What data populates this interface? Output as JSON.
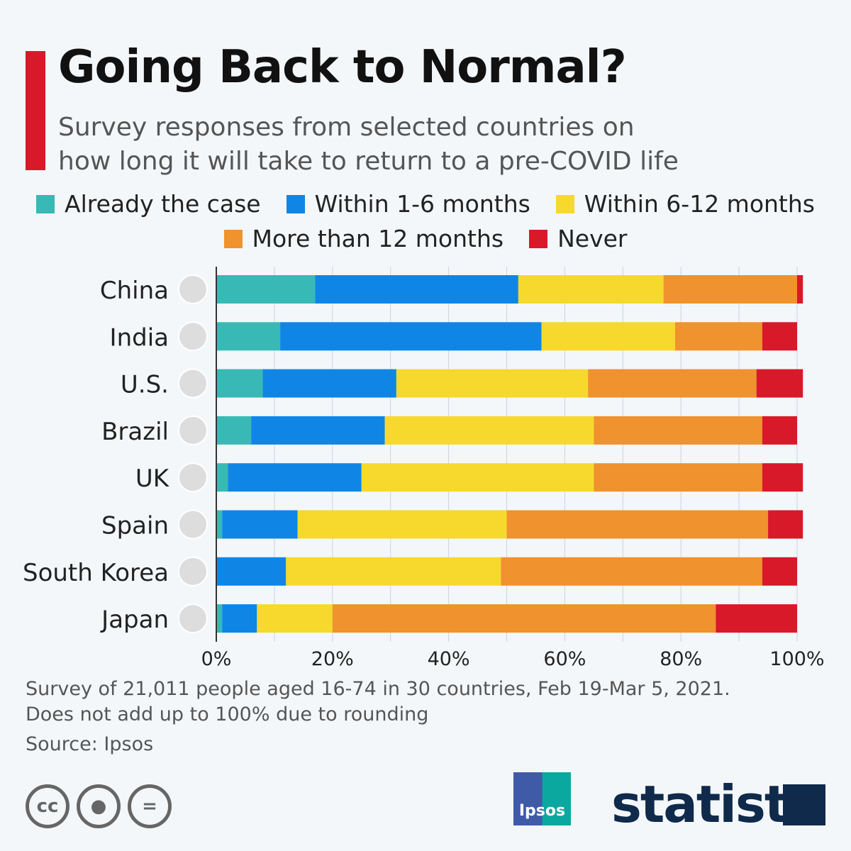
{
  "title": "Going Back to Normal?",
  "subtitle_lines": [
    "Survey responses from selected countries on",
    "how long it will take to return to a pre-COVID life"
  ],
  "footer": {
    "note1": "Survey of 21,011 people aged 16-74 in 30 countries, Feb 19-Mar 5, 2021.",
    "note2": "Does not add up to 100% due to rounding",
    "source": "Source: Ipsos",
    "ipsos_logo": "Ipsos",
    "brand": "statista"
  },
  "chart_data": {
    "type": "bar",
    "orientation": "horizontal",
    "stacked": true,
    "categories": [
      "China",
      "India",
      "U.S.",
      "Brazil",
      "UK",
      "Spain",
      "South Korea",
      "Japan"
    ],
    "xlim": [
      0,
      100
    ],
    "grid": true,
    "legend_placement": "top",
    "xticks": [
      "0%",
      "20%",
      "40%",
      "60%",
      "80%",
      "100%"
    ],
    "series": [
      {
        "name": "Already the case",
        "color": "#39b9b5",
        "values": [
          17,
          11,
          8,
          6,
          2,
          1,
          0,
          1
        ]
      },
      {
        "name": "Within 1-6 months",
        "color": "#0f86e6",
        "values": [
          35,
          45,
          23,
          23,
          23,
          13,
          12,
          6
        ]
      },
      {
        "name": "Within 6-12 months",
        "color": "#f6d92c",
        "values": [
          25,
          23,
          33,
          36,
          40,
          36,
          37,
          13
        ]
      },
      {
        "name": "More than 12 months",
        "color": "#f0922e",
        "values": [
          23,
          15,
          29,
          29,
          29,
          45,
          45,
          66
        ]
      },
      {
        "name": "Never",
        "color": "#d7192a",
        "values": [
          1,
          6,
          8,
          6,
          7,
          6,
          6,
          14
        ]
      }
    ]
  }
}
